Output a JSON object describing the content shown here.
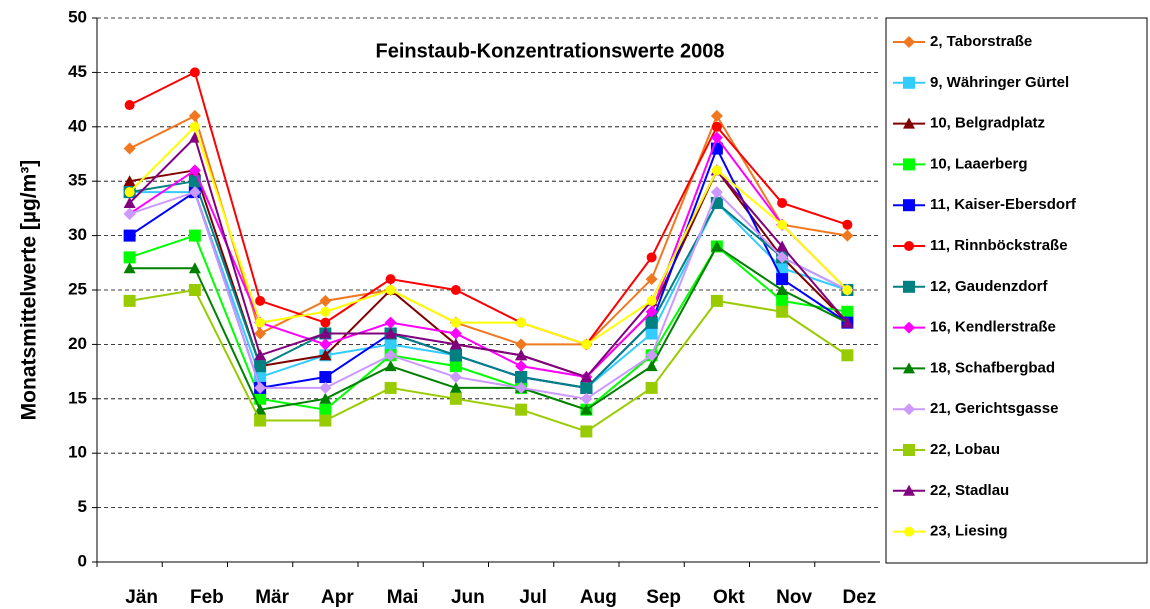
{
  "chart_data": {
    "type": "line",
    "title": "Feinstaub-Konzentrationswerte 2008",
    "y_label": "Monatsmittelwerte [µg/m³]",
    "categories": [
      "Jän",
      "Feb",
      "Mär",
      "Apr",
      "Mai",
      "Jun",
      "Jul",
      "Aug",
      "Sep",
      "Okt",
      "Nov",
      "Dez"
    ],
    "ylim": [
      0,
      50
    ],
    "yticks": [
      0,
      5,
      10,
      15,
      20,
      25,
      30,
      35,
      40,
      45,
      50
    ],
    "grid": true,
    "legend": "right",
    "series": [
      {
        "name": "2, Taborstraße",
        "color": "#f07820",
        "marker": "diamond",
        "values": [
          38,
          41,
          21,
          24,
          25,
          22,
          20,
          20,
          26,
          41,
          31,
          30
        ]
      },
      {
        "name": "9, Währinger Gürtel",
        "color": "#33ccff",
        "marker": "square",
        "values": [
          34,
          34,
          17,
          19,
          20,
          19,
          17,
          16,
          21,
          33,
          27,
          25
        ]
      },
      {
        "name": "10, Belgradplatz",
        "color": "#800000",
        "marker": "triangle",
        "values": [
          35,
          36,
          18,
          19,
          25,
          20,
          19,
          17,
          23,
          36,
          28,
          22
        ]
      },
      {
        "name": "10, Laaerberg",
        "color": "#00ff00",
        "marker": "square",
        "values": [
          28,
          30,
          15,
          14,
          19,
          18,
          16,
          14,
          19,
          29,
          24,
          23
        ]
      },
      {
        "name": "11, Kaiser-Ebersdorf",
        "color": "#0000ff",
        "marker": "square",
        "values": [
          30,
          34,
          16,
          17,
          21,
          19,
          17,
          16,
          22,
          38,
          26,
          22
        ]
      },
      {
        "name": "11, Rinnböckstraße",
        "color": "#ff0000",
        "marker": "circle",
        "values": [
          42,
          45,
          24,
          22,
          26,
          25,
          22,
          20,
          28,
          40,
          33,
          31
        ]
      },
      {
        "name": "12, Gaudenzdorf",
        "color": "#008080",
        "marker": "square",
        "values": [
          34,
          35,
          18,
          21,
          21,
          19,
          17,
          16,
          22,
          33,
          28,
          25
        ]
      },
      {
        "name": "16, Kendlerstraße",
        "color": "#ff00ff",
        "marker": "diamond",
        "values": [
          32,
          36,
          22,
          20,
          22,
          21,
          18,
          17,
          23,
          39,
          31,
          25
        ]
      },
      {
        "name": "18, Schafbergbad",
        "color": "#008000",
        "marker": "triangle",
        "values": [
          27,
          27,
          14,
          15,
          18,
          16,
          16,
          14,
          18,
          29,
          25,
          22
        ]
      },
      {
        "name": "21, Gerichtsgasse",
        "color": "#cc99ff",
        "marker": "diamond",
        "values": [
          32,
          34,
          16,
          16,
          19,
          17,
          16,
          15,
          19,
          34,
          28,
          25
        ]
      },
      {
        "name": "22, Lobau",
        "color": "#99cc00",
        "marker": "square",
        "values": [
          24,
          25,
          13,
          13,
          16,
          15,
          14,
          12,
          16,
          24,
          23,
          19
        ]
      },
      {
        "name": "22, Stadlau",
        "color": "#800080",
        "marker": "triangle",
        "values": [
          33,
          39,
          19,
          21,
          21,
          20,
          19,
          17,
          24,
          36,
          29,
          22
        ]
      },
      {
        "name": "23, Liesing",
        "color": "#ffff00",
        "marker": "circle",
        "values": [
          34,
          40,
          22,
          23,
          25,
          22,
          22,
          20,
          24,
          36,
          31,
          25
        ]
      }
    ]
  }
}
